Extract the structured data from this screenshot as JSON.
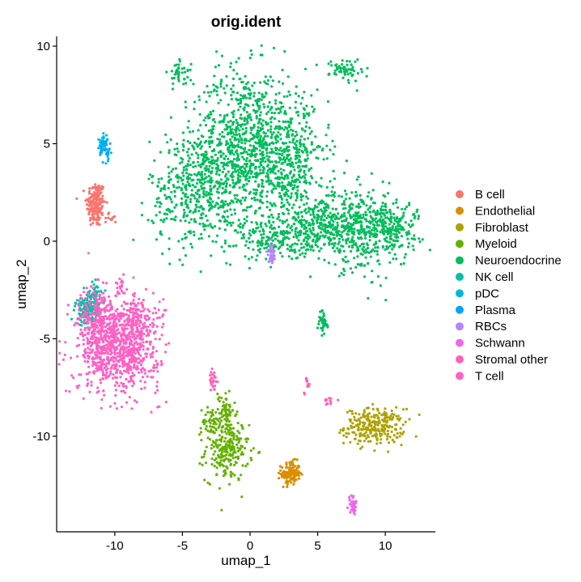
{
  "chart_data": {
    "type": "scatter",
    "title": "orig.ident",
    "xlabel": "umap_1",
    "ylabel": "umap_2",
    "xlim": [
      -14.3,
      13.7
    ],
    "ylim": [
      -14.9,
      10.5
    ],
    "xticks": [
      -10,
      -5,
      0,
      5,
      10
    ],
    "yticks": [
      -10,
      -5,
      0,
      5,
      10
    ],
    "grid": false,
    "legend_position": "right",
    "series": [
      {
        "name": "B cell",
        "color": "#F8766D",
        "clusters": [
          {
            "cx": -11.4,
            "cy": 1.9,
            "sx": 0.35,
            "sy": 0.6,
            "n": 180
          },
          {
            "cx": -10.3,
            "cy": 1.2,
            "sx": 0.25,
            "sy": 0.15,
            "n": 12
          }
        ]
      },
      {
        "name": "Endothelial",
        "color": "#DB8E00",
        "clusters": [
          {
            "cx": 3.0,
            "cy": -11.9,
            "sx": 0.35,
            "sy": 0.3,
            "n": 140
          }
        ]
      },
      {
        "name": "Fibroblast",
        "color": "#AEA200",
        "clusters": [
          {
            "cx": 9.2,
            "cy": -9.5,
            "sx": 1.1,
            "sy": 0.45,
            "n": 260
          }
        ]
      },
      {
        "name": "Myeloid",
        "color": "#64B200",
        "clusters": [
          {
            "cx": -1.7,
            "cy": -10.7,
            "sx": 0.8,
            "sy": 0.8,
            "n": 240
          },
          {
            "cx": -1.8,
            "cy": -8.6,
            "sx": 0.3,
            "sy": 0.5,
            "n": 60
          },
          {
            "cx": -2.9,
            "cy": -9.2,
            "sx": 0.3,
            "sy": 0.4,
            "n": 40
          }
        ]
      },
      {
        "name": "Neuroendocrine",
        "color": "#00BD5C",
        "clusters": [
          {
            "cx": -0.3,
            "cy": 5.0,
            "sx": 1.9,
            "sy": 1.9,
            "n": 900
          },
          {
            "cx": -3.8,
            "cy": 2.5,
            "sx": 1.8,
            "sy": 1.4,
            "n": 450
          },
          {
            "cx": 3.2,
            "cy": 3.8,
            "sx": 1.3,
            "sy": 1.8,
            "n": 380
          },
          {
            "cx": 5.5,
            "cy": 0.8,
            "sx": 1.8,
            "sy": 0.6,
            "n": 300
          },
          {
            "cx": 8.4,
            "cy": 0.5,
            "sx": 1.6,
            "sy": 1.0,
            "n": 380
          },
          {
            "cx": 10.7,
            "cy": 0.8,
            "sx": 1.0,
            "sy": 0.6,
            "n": 130
          },
          {
            "cx": 7.1,
            "cy": 8.8,
            "sx": 0.6,
            "sy": 0.3,
            "n": 60
          },
          {
            "cx": -5.2,
            "cy": 8.6,
            "sx": 0.4,
            "sy": 0.3,
            "n": 40
          },
          {
            "cx": 5.4,
            "cy": -4.2,
            "sx": 0.2,
            "sy": 0.35,
            "n": 40
          },
          {
            "cx": 1.8,
            "cy": 0.0,
            "sx": 1.3,
            "sy": 0.5,
            "n": 150
          }
        ]
      },
      {
        "name": "NK cell",
        "color": "#00C1A7",
        "clusters": [
          {
            "cx": -12.0,
            "cy": -3.5,
            "sx": 0.45,
            "sy": 0.4,
            "n": 140
          },
          {
            "cx": -11.3,
            "cy": -2.7,
            "sx": 0.2,
            "sy": 0.3,
            "n": 30
          }
        ]
      },
      {
        "name": "pDC",
        "color": "#00BADE",
        "clusters": [
          {
            "cx": -11.0,
            "cy": 4.9,
            "sx": 0.2,
            "sy": 0.3,
            "n": 30
          },
          {
            "cx": -10.5,
            "cy": 4.5,
            "sx": 0.12,
            "sy": 0.2,
            "n": 15
          }
        ]
      },
      {
        "name": "Plasma",
        "color": "#00A6FF",
        "clusters": [
          {
            "cx": -10.7,
            "cy": 4.7,
            "sx": 0.2,
            "sy": 0.25,
            "n": 20
          }
        ]
      },
      {
        "name": "RBCs",
        "color": "#B385FF",
        "clusters": [
          {
            "cx": 1.6,
            "cy": -0.6,
            "sx": 0.12,
            "sy": 0.25,
            "n": 35
          }
        ]
      },
      {
        "name": "Schwann",
        "color": "#EF67EB",
        "clusters": [
          {
            "cx": 7.6,
            "cy": -13.5,
            "sx": 0.15,
            "sy": 0.25,
            "n": 35
          }
        ]
      },
      {
        "name": "Stromal other",
        "color": "#FF63B6",
        "clusters": [
          {
            "cx": -2.7,
            "cy": -7.2,
            "sx": 0.15,
            "sy": 0.45,
            "n": 25
          },
          {
            "cx": 4.2,
            "cy": -7.4,
            "sx": 0.12,
            "sy": 0.2,
            "n": 12
          },
          {
            "cx": 5.9,
            "cy": -8.2,
            "sx": 0.25,
            "sy": 0.12,
            "n": 12
          }
        ]
      },
      {
        "name": "T cell",
        "color": "#FF61C3",
        "clusters": [
          {
            "cx": -9.7,
            "cy": -5.5,
            "sx": 1.5,
            "sy": 1.1,
            "n": 800
          },
          {
            "cx": -11.2,
            "cy": -4.0,
            "sx": 0.6,
            "sy": 0.9,
            "n": 220
          },
          {
            "cx": -8.6,
            "cy": -3.9,
            "sx": 0.8,
            "sy": 0.5,
            "n": 120
          },
          {
            "cx": -9.6,
            "cy": -2.4,
            "sx": 0.2,
            "sy": 0.3,
            "n": 20
          }
        ]
      }
    ]
  }
}
